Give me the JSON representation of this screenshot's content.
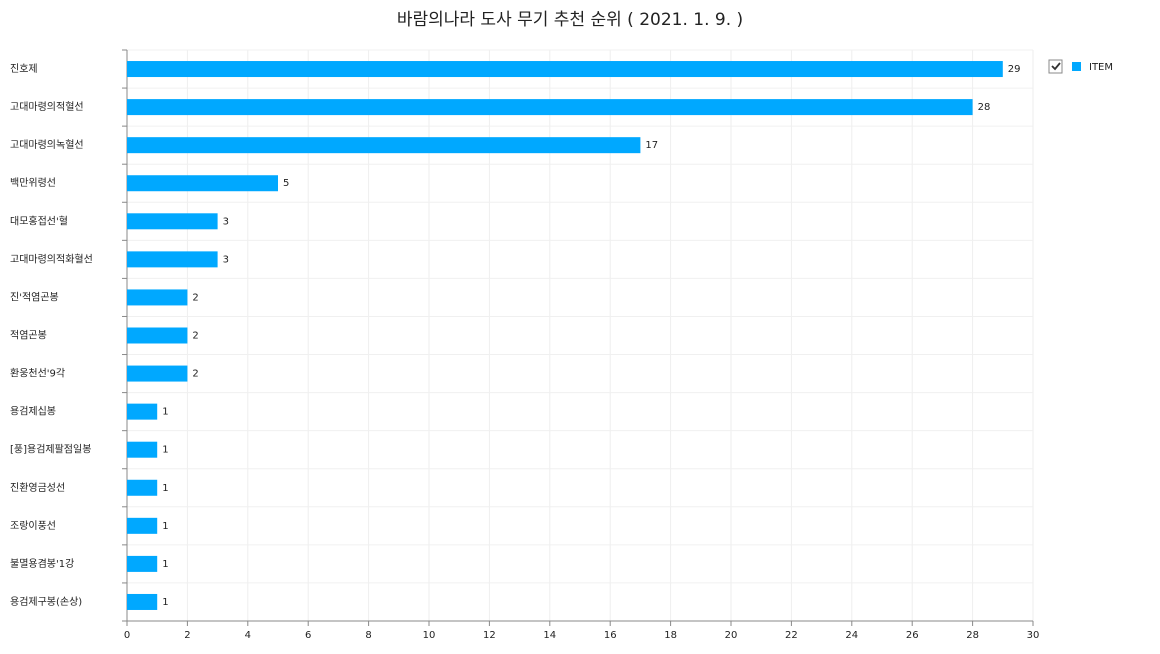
{
  "chart_data": {
    "type": "hbar",
    "title": "바람의나라 도사 무기 추천 순위 ( 2021. 1. 9. )",
    "categories": [
      "진호제",
      "고대마령의적혈선",
      "고대마령의녹혈선",
      "백만위령선",
      "대모홍접선'혈",
      "고대마령의적화혈선",
      "진'적염곤봉",
      "적염곤봉",
      "환웅천선'9각",
      "용검제십봉",
      "[풍]용검제팔점일봉",
      "진환영금성선",
      "조랑이풍선",
      "불멸용겸봉'1강",
      "용검제구봉(손상)"
    ],
    "series": [
      {
        "name": "ITEM",
        "color": "#00a8ff",
        "values": [
          29,
          28,
          17,
          5,
          3,
          3,
          2,
          2,
          2,
          1,
          1,
          1,
          1,
          1,
          1
        ]
      }
    ],
    "xlim": [
      0,
      30
    ],
    "xticks": [
      0,
      2,
      4,
      6,
      8,
      10,
      12,
      14,
      16,
      18,
      20,
      22,
      24,
      26,
      28,
      30
    ],
    "grid": true,
    "legend": "top-right"
  }
}
